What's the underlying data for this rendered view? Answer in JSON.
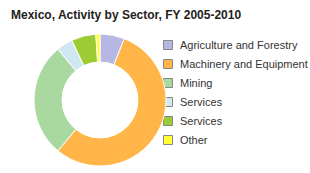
{
  "chart_data": {
    "type": "pie",
    "title": "Mexico, Activity by Sector, FY 2005-2010",
    "categories": [
      "Agriculture and Forestry",
      "Machinery and Equipment",
      "Mining",
      "Services",
      "Services",
      "Other"
    ],
    "values": [
      6,
      55,
      28,
      4,
      6,
      1
    ],
    "colors": [
      "#b7b7e4",
      "#ffb547",
      "#a9d9a0",
      "#cfe7f1",
      "#9ccc33",
      "#ffff33"
    ],
    "legend": "right"
  }
}
